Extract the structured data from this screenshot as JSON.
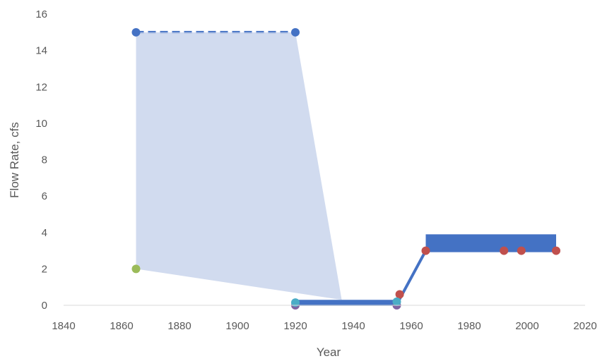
{
  "chart_data": {
    "type": "scatter",
    "title": "",
    "xlabel": "Year",
    "ylabel": "Flow Rate, cfs",
    "xlim": [
      1840,
      2020
    ],
    "ylim": [
      0,
      16
    ],
    "xticks": [
      "1840",
      "1860",
      "1880",
      "1900",
      "1920",
      "1940",
      "1960",
      "1980",
      "2000",
      "2020"
    ],
    "yticks": [
      "0",
      "2",
      "4",
      "6",
      "8",
      "10",
      "12",
      "14",
      "16"
    ],
    "grid": false,
    "legend": "none",
    "colors": {
      "blue": "#4472c4",
      "light_blue_fill": "#c9d5ec",
      "red": "#c0504d",
      "green": "#9bbb59",
      "purple": "#8064a2",
      "cyan": "#4bacc6",
      "axis": "#d9d9d9",
      "text": "#595959"
    },
    "series": [
      {
        "style": "dashed-line",
        "color": "#4472c4",
        "points": [
          [
            1865,
            15
          ],
          [
            1920,
            15
          ]
        ]
      },
      {
        "style": "filled-area",
        "color": "#c9d5ec",
        "points": [
          [
            1865,
            15
          ],
          [
            1920,
            15
          ],
          [
            1936,
            0.3
          ],
          [
            1865,
            2
          ]
        ]
      },
      {
        "style": "line",
        "color": "#4472c4",
        "points": [
          [
            1920,
            0.05
          ],
          [
            1955,
            0.05
          ],
          [
            1965,
            3
          ],
          [
            2010,
            3
          ]
        ]
      },
      {
        "style": "band",
        "color": "#4472c4",
        "points": [
          [
            1965,
            3
          ],
          [
            2010,
            3.9
          ]
        ]
      },
      {
        "style": "band",
        "color": "#4472c4",
        "points": [
          [
            1920,
            0
          ],
          [
            1955,
            0.3
          ]
        ]
      },
      {
        "style": "markers",
        "color": "#4472c4",
        "points": [
          [
            1865,
            15
          ],
          [
            1920,
            15
          ]
        ]
      },
      {
        "style": "markers",
        "color": "#c0504d",
        "points": [
          [
            1956,
            0.6
          ],
          [
            1965,
            3
          ],
          [
            1992,
            3
          ],
          [
            1998,
            3
          ],
          [
            2010,
            3
          ]
        ]
      },
      {
        "style": "markers",
        "color": "#9bbb59",
        "points": [
          [
            1865,
            2
          ]
        ]
      },
      {
        "style": "markers",
        "color": "#8064a2",
        "points": [
          [
            1920,
            0
          ],
          [
            1955,
            0
          ]
        ]
      },
      {
        "style": "markers",
        "color": "#4bacc6",
        "points": [
          [
            1920,
            0.15
          ],
          [
            1955,
            0.2
          ]
        ]
      }
    ]
  }
}
